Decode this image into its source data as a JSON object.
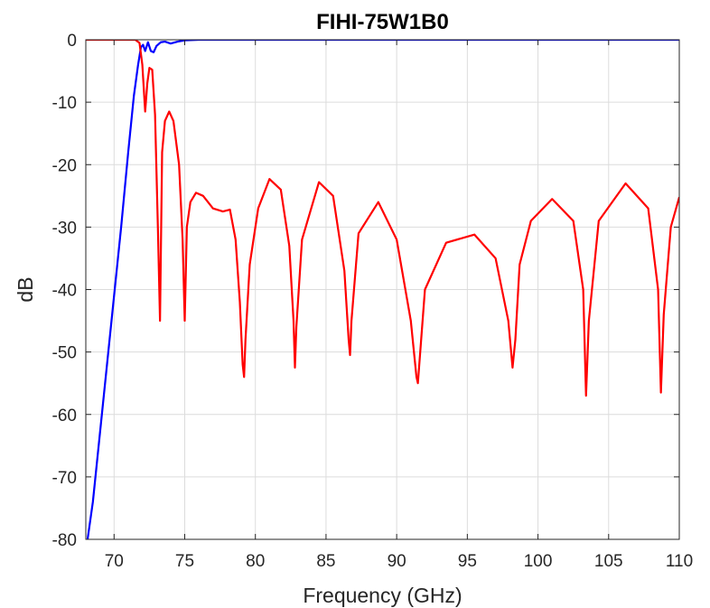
{
  "chart_data": {
    "type": "line",
    "title": "FIHI-75W1B0",
    "xlabel": "Frequency (GHz)",
    "ylabel": "dB",
    "xlim": [
      68,
      110
    ],
    "ylim": [
      -80,
      0
    ],
    "xticks": [
      70,
      75,
      80,
      85,
      90,
      95,
      100,
      105,
      110
    ],
    "yticks": [
      0,
      -10,
      -20,
      -30,
      -40,
      -50,
      -60,
      -70,
      -80
    ],
    "grid": true,
    "legend": "none",
    "series": [
      {
        "color": "#0000ff",
        "x": [
          68.0,
          68.5,
          69.0,
          69.5,
          70.0,
          70.5,
          71.0,
          71.4,
          71.7,
          71.9,
          72.05,
          72.2,
          72.4,
          72.6,
          72.8,
          73.0,
          73.3,
          73.6,
          74.0,
          74.5,
          75.0,
          76.0,
          80.0,
          90.0,
          100.0,
          110.0
        ],
        "y": [
          -82,
          -74,
          -63,
          -52,
          -41,
          -30,
          -18,
          -9,
          -4,
          -1.2,
          -0.8,
          -1.8,
          -0.4,
          -1.8,
          -2.0,
          -1.0,
          -0.4,
          -0.3,
          -0.6,
          -0.3,
          -0.1,
          0,
          0,
          0,
          0,
          0
        ]
      },
      {
        "color": "#ff0000",
        "x": [
          68.0,
          70.0,
          71.0,
          71.5,
          71.8,
          72.0,
          72.2,
          72.35,
          72.5,
          72.7,
          72.9,
          73.1,
          73.25,
          73.4,
          73.6,
          73.9,
          74.2,
          74.6,
          74.85,
          75.0,
          75.15,
          75.4,
          75.8,
          76.3,
          77.0,
          77.7,
          78.2,
          78.6,
          78.9,
          79.1,
          79.2,
          79.3,
          79.6,
          80.2,
          81.0,
          81.8,
          82.4,
          82.7,
          82.8,
          82.9,
          83.3,
          84.5,
          85.5,
          86.3,
          86.6,
          86.7,
          86.8,
          87.3,
          88.7,
          90.0,
          91.0,
          91.4,
          91.5,
          91.6,
          92.0,
          93.5,
          95.5,
          97.0,
          97.9,
          98.2,
          98.4,
          98.7,
          99.5,
          101.0,
          102.5,
          103.2,
          103.4,
          103.6,
          104.3,
          106.2,
          107.8,
          108.5,
          108.7,
          108.9,
          109.4,
          110.0
        ],
        "y": [
          0,
          0,
          0,
          0,
          -0.5,
          -4,
          -11.5,
          -7,
          -4.5,
          -4.8,
          -12,
          -30,
          -45,
          -18,
          -13,
          -11.5,
          -13,
          -20,
          -32,
          -45,
          -30,
          -26,
          -24.5,
          -25,
          -27,
          -27.5,
          -27.2,
          -32,
          -42,
          -52,
          -54,
          -48,
          -36,
          -27,
          -22.3,
          -24,
          -33,
          -45,
          -52.5,
          -46,
          -32,
          -22.8,
          -25,
          -37,
          -48,
          -50.5,
          -45,
          -31,
          -26,
          -32,
          -45,
          -54,
          -55,
          -52,
          -40,
          -32.5,
          -31.2,
          -35,
          -45,
          -52.5,
          -48,
          -36,
          -29,
          -25.5,
          -29,
          -40,
          -57,
          -45,
          -29,
          -23,
          -27,
          -40,
          -56.5,
          -44,
          -30,
          -25.2
        ]
      }
    ]
  }
}
